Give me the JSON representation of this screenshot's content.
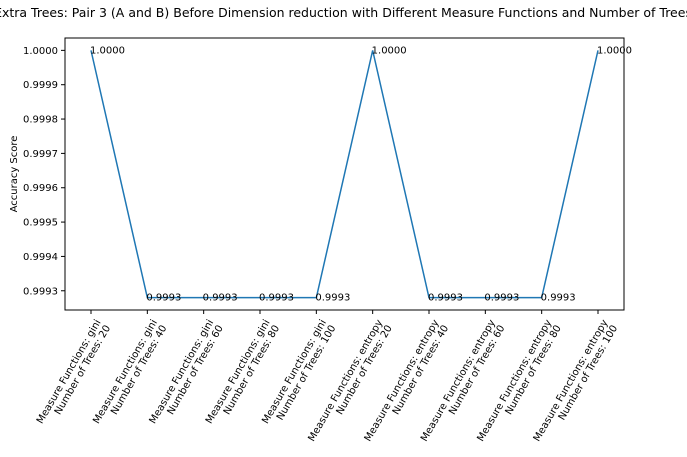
{
  "chart_data": {
    "type": "line",
    "title": "Extra Trees: Pair 3 (A and B) Before Dimension reduction with Different Measure Functions and Number of Trees",
    "xlabel": "",
    "ylabel": "Accuracy Score",
    "categories": [
      [
        "Measure Functions: gini",
        "Number of Trees: 20"
      ],
      [
        "Measure Functions: gini",
        "Number of Trees: 40"
      ],
      [
        "Measure Functions: gini",
        "Number of Trees: 60"
      ],
      [
        "Measure Functions: gini",
        "Number of Trees: 80"
      ],
      [
        "Measure Functions: gini",
        "Number of Trees: 100"
      ],
      [
        "Measure Functions: entropy",
        "Number of Trees: 20"
      ],
      [
        "Measure Functions: entropy",
        "Number of Trees: 40"
      ],
      [
        "Measure Functions: entropy",
        "Number of Trees: 60"
      ],
      [
        "Measure Functions: entropy",
        "Number of Trees: 80"
      ],
      [
        "Measure Functions: entropy",
        "Number of Trees: 100"
      ]
    ],
    "values": [
      1.0,
      0.99928,
      0.99928,
      0.99928,
      0.99928,
      1.0,
      0.99928,
      0.99928,
      0.99928,
      1.0
    ],
    "data_labels": [
      "1.0000",
      "0.9993",
      "0.9993",
      "0.9993",
      "0.9993",
      "1.0000",
      "0.9993",
      "0.9993",
      "0.9993",
      "1.0000"
    ],
    "yticks": [
      0.9993,
      0.9994,
      0.9995,
      0.9996,
      0.9997,
      0.9998,
      0.9999,
      1.0
    ],
    "ytick_labels": [
      "0.9993",
      "0.9994",
      "0.9995",
      "0.9996",
      "0.9997",
      "0.9998",
      "0.9999",
      "1.0000"
    ],
    "ylim": [
      0.999244,
      1.000036
    ],
    "grid": false,
    "colors": {
      "line": "#1f77b4"
    }
  }
}
